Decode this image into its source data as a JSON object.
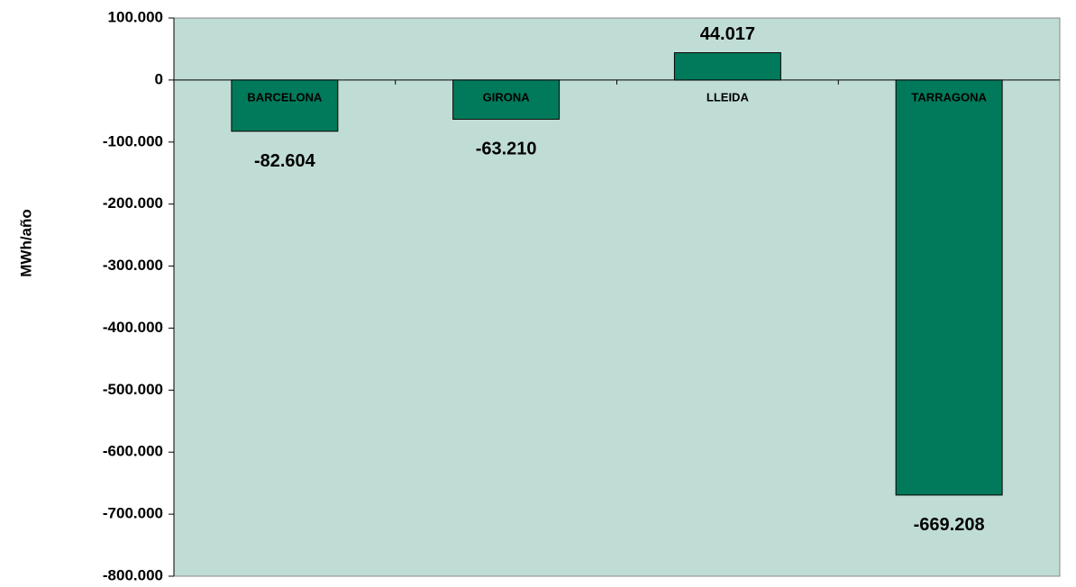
{
  "chart_data": {
    "type": "bar",
    "y_label": "MWh/año",
    "categories": [
      "BARCELONA",
      "GIRONA",
      "LLEIDA",
      "TARRAGONA"
    ],
    "values": [
      -82604,
      -63210,
      44017,
      -669208
    ],
    "value_labels": [
      "-82.604",
      "-63.210",
      "44.017",
      "-669.208"
    ],
    "color": "#007a5a",
    "plot_background": "#c0ddd5",
    "ylim": [
      -800000,
      100000
    ],
    "yticks": [
      {
        "value": 100000,
        "label": "100.000"
      },
      0,
      {
        "value": -100000,
        "label": "-100.000"
      },
      {
        "value": -200000,
        "label": "-200.000"
      },
      {
        "value": -300000,
        "label": "-300.000"
      },
      {
        "value": -400000,
        "label": "-400.000"
      },
      {
        "value": -500000,
        "label": "-500.000"
      },
      {
        "value": -600000,
        "label": "-600.000"
      },
      {
        "value": -700000,
        "label": "-700.000"
      },
      {
        "value": -800000,
        "label": "-800.000"
      }
    ],
    "grid": false
  }
}
